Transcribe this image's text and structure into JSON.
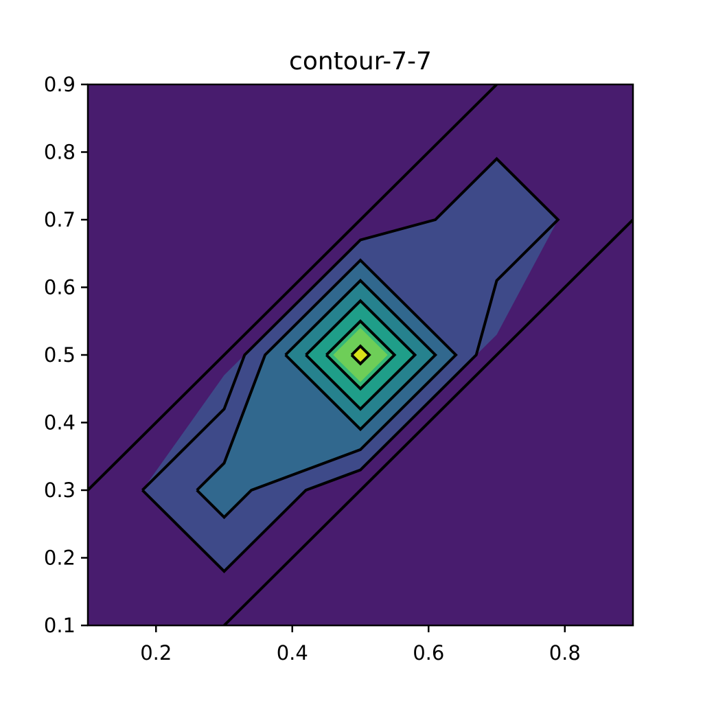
{
  "chart_data": {
    "type": "contour",
    "title": "contour-7-7",
    "xlabel": "",
    "ylabel": "",
    "xlim": [
      0.1,
      0.9
    ],
    "ylim": [
      0.1,
      0.9
    ],
    "x_ticks": [
      0.2,
      0.4,
      0.6,
      0.8
    ],
    "x_tick_labels": [
      "0.2",
      "0.4",
      "0.6",
      "0.8"
    ],
    "y_ticks": [
      0.1,
      0.2,
      0.3,
      0.4,
      0.5,
      0.6,
      0.7,
      0.8,
      0.9
    ],
    "y_tick_labels": [
      "0.1",
      "0.2",
      "0.3",
      "0.4",
      "0.5",
      "0.6",
      "0.7",
      "0.8",
      "0.9"
    ],
    "colormap": "viridis",
    "background_color": "#481c6e",
    "levels": [
      {
        "name": "level-1",
        "color": "#3e4a89",
        "polygons": [
          [
            [
              0.18,
              0.3
            ],
            [
              0.3,
              0.18
            ],
            [
              0.42,
              0.3
            ],
            [
              0.5,
              0.33
            ],
            [
              0.7,
              0.53
            ],
            [
              0.79,
              0.7
            ],
            [
              0.7,
              0.79
            ],
            [
              0.61,
              0.7
            ],
            [
              0.5,
              0.67
            ],
            [
              0.3,
              0.47
            ]
          ]
        ]
      },
      {
        "name": "level-2",
        "color": "#31688e",
        "polygons": [
          [
            [
              0.26,
              0.3
            ],
            [
              0.3,
              0.26
            ],
            [
              0.34,
              0.3
            ],
            [
              0.5,
              0.36
            ],
            [
              0.64,
              0.5
            ],
            [
              0.5,
              0.64
            ],
            [
              0.36,
              0.5
            ],
            [
              0.3,
              0.34
            ]
          ]
        ]
      },
      {
        "name": "level-3",
        "color": "#26828e",
        "polygons": [
          [
            [
              0.39,
              0.5
            ],
            [
              0.5,
              0.39
            ],
            [
              0.61,
              0.5
            ],
            [
              0.5,
              0.61
            ]
          ]
        ]
      },
      {
        "name": "level-4",
        "color": "#1f9e89",
        "polygons": [
          [
            [
              0.42,
              0.5
            ],
            [
              0.5,
              0.42
            ],
            [
              0.58,
              0.5
            ],
            [
              0.5,
              0.58
            ]
          ]
        ]
      },
      {
        "name": "level-5",
        "color": "#35b779",
        "polygons": [
          [
            [
              0.45,
              0.5
            ],
            [
              0.5,
              0.45
            ],
            [
              0.55,
              0.5
            ],
            [
              0.5,
              0.55
            ]
          ]
        ]
      },
      {
        "name": "level-6",
        "color": "#6ece58",
        "polygons": [
          [
            [
              0.46,
              0.5
            ],
            [
              0.5,
              0.46
            ],
            [
              0.54,
              0.5
            ],
            [
              0.5,
              0.54
            ]
          ]
        ]
      },
      {
        "name": "level-7",
        "color": "#d8e219",
        "polygons": [
          [
            [
              0.487,
              0.5
            ],
            [
              0.5,
              0.487
            ],
            [
              0.513,
              0.5
            ],
            [
              0.5,
              0.513
            ]
          ]
        ]
      }
    ],
    "contour_lines": [
      {
        "name": "diagonal-line-upper",
        "points": [
          [
            0.1,
            0.3
          ],
          [
            0.7,
            0.9
          ]
        ]
      },
      {
        "name": "diagonal-line-lower",
        "points": [
          [
            0.3,
            0.1
          ],
          [
            0.9,
            0.7
          ]
        ]
      },
      {
        "name": "outer-contour",
        "points": [
          [
            0.18,
            0.3
          ],
          [
            0.3,
            0.18
          ],
          [
            0.42,
            0.3
          ],
          [
            0.5,
            0.33
          ],
          [
            0.67,
            0.5
          ],
          [
            0.7,
            0.61
          ],
          [
            0.79,
            0.7
          ],
          [
            0.7,
            0.79
          ],
          [
            0.61,
            0.7
          ],
          [
            0.5,
            0.67
          ],
          [
            0.33,
            0.5
          ],
          [
            0.3,
            0.42
          ],
          [
            0.18,
            0.3
          ]
        ]
      },
      {
        "name": "inner-contour",
        "points": [
          [
            0.26,
            0.3
          ],
          [
            0.3,
            0.26
          ],
          [
            0.34,
            0.3
          ],
          [
            0.5,
            0.36
          ],
          [
            0.64,
            0.5
          ],
          [
            0.5,
            0.64
          ],
          [
            0.36,
            0.5
          ],
          [
            0.3,
            0.34
          ],
          [
            0.26,
            0.3
          ]
        ]
      },
      {
        "name": "diamond-1",
        "points": [
          [
            0.39,
            0.5
          ],
          [
            0.5,
            0.39
          ],
          [
            0.61,
            0.5
          ],
          [
            0.5,
            0.61
          ],
          [
            0.39,
            0.5
          ]
        ]
      },
      {
        "name": "diamond-2",
        "points": [
          [
            0.42,
            0.5
          ],
          [
            0.5,
            0.42
          ],
          [
            0.58,
            0.5
          ],
          [
            0.5,
            0.58
          ],
          [
            0.42,
            0.5
          ]
        ]
      },
      {
        "name": "diamond-3",
        "points": [
          [
            0.45,
            0.5
          ],
          [
            0.5,
            0.45
          ],
          [
            0.55,
            0.5
          ],
          [
            0.5,
            0.55
          ],
          [
            0.45,
            0.5
          ]
        ]
      },
      {
        "name": "diamond-4",
        "points": [
          [
            0.487,
            0.5
          ],
          [
            0.5,
            0.487
          ],
          [
            0.513,
            0.5
          ],
          [
            0.5,
            0.513
          ],
          [
            0.487,
            0.5
          ]
        ]
      }
    ]
  }
}
